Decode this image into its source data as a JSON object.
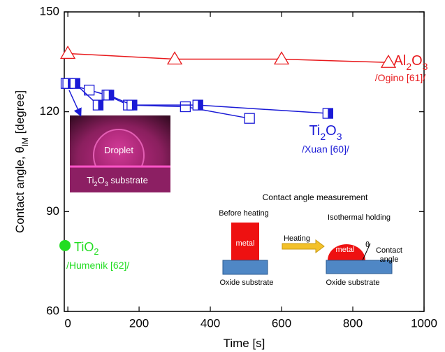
{
  "chart_data": {
    "type": "line",
    "xlabel": [
      {
        "text": "Time [s]"
      }
    ],
    "ylabel": [
      {
        "text": "Contact angle, θ"
      },
      {
        "text": "IM",
        "sub": true
      },
      {
        "text": " [degree]"
      }
    ],
    "xlim": [
      -10,
      1000
    ],
    "ylim": [
      60,
      150
    ],
    "xticks": [
      0,
      200,
      400,
      600,
      800,
      1000
    ],
    "yticks": [
      60,
      90,
      120,
      150
    ],
    "series": [
      {
        "color": "#e8191c",
        "marker": "triangle-open",
        "x": [
          0,
          300,
          600,
          900
        ],
        "values": [
          137.5,
          135.8,
          135.8,
          134.8
        ]
      },
      {
        "color": "#1a1ad6",
        "marker": "square-open",
        "x": [
          -5,
          60,
          110,
          170,
          330,
          510
        ],
        "values": [
          128.5,
          126.5,
          125,
          122,
          121.5,
          118
        ]
      },
      {
        "color": "#1a1ad6",
        "marker": "square-half",
        "x": [
          0,
          20,
          85,
          115,
          180,
          365,
          730
        ],
        "values": [
          128.5,
          128.5,
          122,
          125,
          122,
          122,
          119.5
        ]
      },
      {
        "color": "#22dd22",
        "marker": "circle-filled",
        "x": [
          -8
        ],
        "values": [
          79.8
        ]
      }
    ],
    "annotations": [
      {
        "color": "#e8191c",
        "parts": [
          {
            "text": "Al"
          },
          {
            "text": "2",
            "sub": true
          },
          {
            "text": "O"
          },
          {
            "text": "3",
            "sub": true
          }
        ]
      },
      {
        "color": "#e8191c",
        "parts": [
          {
            "text": "/Ogino [61]/"
          }
        ]
      },
      {
        "color": "#1a1ad6",
        "parts": [
          {
            "text": "Ti"
          },
          {
            "text": "2",
            "sub": true
          },
          {
            "text": "O"
          },
          {
            "text": "3",
            "sub": true
          }
        ]
      },
      {
        "color": "#1a1ad6",
        "parts": [
          {
            "text": "/Xuan [60]/"
          }
        ]
      },
      {
        "color": "#22dd22",
        "parts": [
          {
            "text": "TiO"
          },
          {
            "text": "2",
            "sub": true
          }
        ]
      },
      {
        "color": "#22dd22",
        "parts": [
          {
            "text": "/Humenik [62]/"
          }
        ]
      }
    ],
    "photo": {
      "droplet": [
        {
          "text": "Droplet"
        }
      ],
      "substrate": [
        {
          "text": "Ti"
        },
        {
          "text": "2",
          "sub": true
        },
        {
          "text": "O"
        },
        {
          "text": "3",
          "sub": true
        },
        {
          "text": " substrate"
        }
      ]
    },
    "schematic": {
      "title": "Contact angle measurement",
      "before": "Before heating",
      "metal_before": "metal",
      "heating": "Heating",
      "holding": "Isothermal holding",
      "metal_after": "metal",
      "theta": "θ",
      "contact": "Contact",
      "angle": "angle",
      "substrate_before": "Oxide substrate",
      "substrate_after": "Oxide substrate"
    }
  }
}
